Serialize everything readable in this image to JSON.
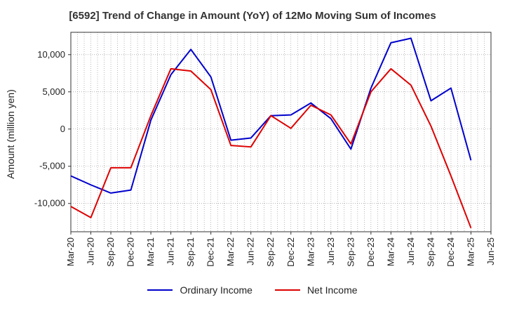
{
  "chart_data": {
    "type": "line",
    "title": "[6592]  Trend of Change in Amount (YoY) of 12Mo Moving Sum of Incomes",
    "xlabel": "",
    "ylabel": "Amount (million yen)",
    "categories": [
      "Mar-20",
      "Jun-20",
      "Sep-20",
      "Dec-20",
      "Mar-21",
      "Jun-21",
      "Sep-21",
      "Dec-21",
      "Mar-22",
      "Jun-22",
      "Sep-22",
      "Dec-22",
      "Mar-23",
      "Jun-23",
      "Sep-23",
      "Dec-23",
      "Mar-24",
      "Jun-24",
      "Sep-24",
      "Dec-24",
      "Mar-25",
      "Jun-25"
    ],
    "ylim": [
      -13800,
      13000
    ],
    "yticks": [
      -10000,
      -5000,
      0,
      5000,
      10000
    ],
    "ytick_labels": [
      "-10,000",
      "-5,000",
      "0",
      "5,000",
      "10,000"
    ],
    "grid": true,
    "legend_position": "bottom",
    "series": [
      {
        "name": "Ordinary Income",
        "color": "#0000cc",
        "values": [
          -6300,
          -7500,
          -8600,
          -8200,
          1200,
          7300,
          10700,
          7000,
          -1500,
          -1200,
          1800,
          1900,
          3500,
          1400,
          -2700,
          5500,
          11600,
          12200,
          3800,
          5500,
          -4200,
          null
        ]
      },
      {
        "name": "Net Income",
        "color": "#dd0000",
        "values": [
          -10400,
          -11900,
          -5200,
          -5200,
          1800,
          8100,
          7800,
          5300,
          -2200,
          -2400,
          1800,
          100,
          3200,
          1900,
          -2000,
          5000,
          8100,
          5900,
          400,
          -6300,
          -13300,
          null
        ]
      }
    ]
  }
}
